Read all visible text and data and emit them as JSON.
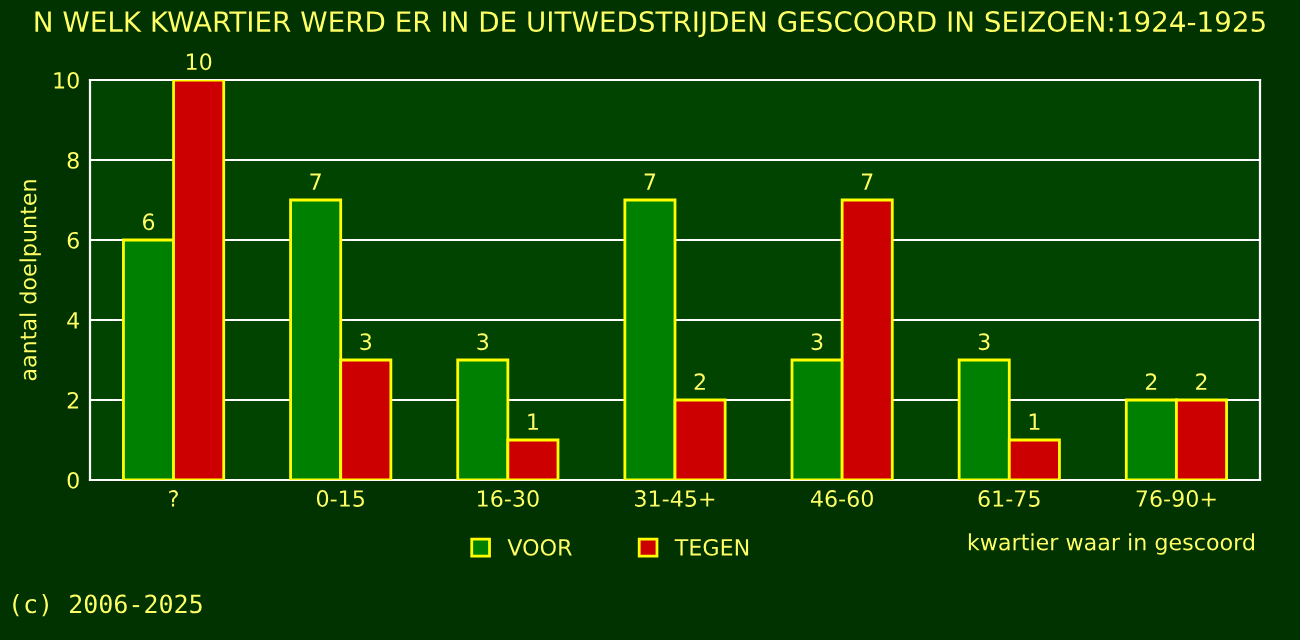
{
  "chart_data": {
    "type": "bar",
    "title": "N WELK KWARTIER WERD ER IN DE UITWEDSTRIJDEN GESCOORD IN SEIZOEN:1924-1925",
    "ylabel": "aantal doelpunten",
    "xlabel": "kwartier waar in gescoord",
    "categories": [
      "?",
      "0-15",
      "16-30",
      "31-45+",
      "46-60",
      "61-75",
      "76-90+"
    ],
    "series": [
      {
        "name": "VOOR",
        "color": "#008000",
        "values": [
          6,
          7,
          3,
          7,
          3,
          3,
          2
        ]
      },
      {
        "name": "TEGEN",
        "color": "#cc0000",
        "values": [
          10,
          3,
          1,
          2,
          7,
          1,
          2
        ]
      }
    ],
    "ylim": [
      0,
      10
    ],
    "yticks": [
      0,
      2,
      4,
      6,
      8,
      10
    ],
    "grid": "y",
    "legend": "bottom",
    "data_labels": true,
    "annotations": [
      "(c) 2006-2025"
    ]
  }
}
